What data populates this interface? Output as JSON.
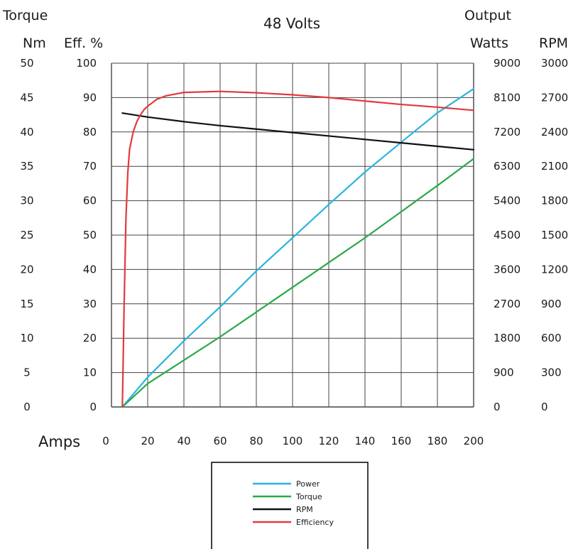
{
  "chart_data": {
    "type": "line",
    "title": "48 Volts",
    "xlabel": "Amps",
    "x_ticks": [
      "0",
      "20",
      "40",
      "60",
      "80",
      "100",
      "120",
      "140",
      "160",
      "180",
      "200"
    ],
    "xlim": [
      0,
      200
    ],
    "grid": true,
    "axes": {
      "torque": {
        "label_line1": "Torque",
        "label_line2": "Nm",
        "range": [
          0,
          50
        ],
        "ticks": [
          "0",
          "5",
          "10",
          "15",
          "20",
          "25",
          "30",
          "35",
          "40",
          "45",
          "50"
        ]
      },
      "efficiency": {
        "label": "Eff. %",
        "range": [
          0,
          100
        ],
        "ticks": [
          "0",
          "10",
          "20",
          "30",
          "40",
          "50",
          "60",
          "70",
          "80",
          "90",
          "100"
        ]
      },
      "power": {
        "label_line1": "Output",
        "label_line2": "Watts",
        "range": [
          0,
          9000
        ],
        "ticks": [
          "0",
          "900",
          "1800",
          "2700",
          "3600",
          "4500",
          "5400",
          "6300",
          "7200",
          "8100",
          "9000"
        ]
      },
      "rpm": {
        "label": "RPM",
        "range": [
          0,
          3000
        ],
        "ticks": [
          "0",
          "300",
          "600",
          "900",
          "1200",
          "1500",
          "1800",
          "2100",
          "2400",
          "2700",
          "3000"
        ]
      }
    },
    "series": [
      {
        "name": "Power",
        "axis": "power",
        "color": "#2ab4e0",
        "points": [
          [
            6,
            0
          ],
          [
            20,
            780
          ],
          [
            40,
            1730
          ],
          [
            60,
            2620
          ],
          [
            80,
            3560
          ],
          [
            100,
            4430
          ],
          [
            120,
            5300
          ],
          [
            140,
            6150
          ],
          [
            160,
            6930
          ],
          [
            180,
            7700
          ],
          [
            200,
            8330
          ]
        ]
      },
      {
        "name": "Torque",
        "axis": "torque",
        "color": "#2aa84a",
        "points": [
          [
            6,
            0
          ],
          [
            20,
            3.4
          ],
          [
            40,
            6.8
          ],
          [
            60,
            10.2
          ],
          [
            80,
            13.8
          ],
          [
            100,
            17.4
          ],
          [
            120,
            21.0
          ],
          [
            140,
            24.6
          ],
          [
            160,
            28.4
          ],
          [
            180,
            32.2
          ],
          [
            200,
            36.1
          ]
        ]
      },
      {
        "name": "RPM",
        "axis": "rpm",
        "color": "#111111",
        "points": [
          [
            6,
            2565
          ],
          [
            20,
            2530
          ],
          [
            40,
            2490
          ],
          [
            60,
            2455
          ],
          [
            80,
            2425
          ],
          [
            100,
            2395
          ],
          [
            120,
            2365
          ],
          [
            140,
            2335
          ],
          [
            160,
            2305
          ],
          [
            180,
            2275
          ],
          [
            200,
            2245
          ]
        ]
      },
      {
        "name": "Efficiency",
        "axis": "efficiency",
        "color": "#e03a3e",
        "points": [
          [
            6,
            0
          ],
          [
            7,
            30
          ],
          [
            8,
            55
          ],
          [
            9,
            68
          ],
          [
            10,
            75
          ],
          [
            12,
            80
          ],
          [
            14,
            83
          ],
          [
            16,
            85
          ],
          [
            18,
            86.5
          ],
          [
            20,
            87.5
          ],
          [
            25,
            89.5
          ],
          [
            30,
            90.5
          ],
          [
            40,
            91.5
          ],
          [
            60,
            91.8
          ],
          [
            80,
            91.4
          ],
          [
            100,
            90.8
          ],
          [
            120,
            90
          ],
          [
            140,
            89
          ],
          [
            160,
            88
          ],
          [
            180,
            87.2
          ],
          [
            200,
            86.3
          ]
        ]
      }
    ],
    "legend": {
      "position": "bottom-center",
      "entries": [
        "Power",
        "Torque",
        "RPM",
        "Efficiency"
      ]
    }
  }
}
